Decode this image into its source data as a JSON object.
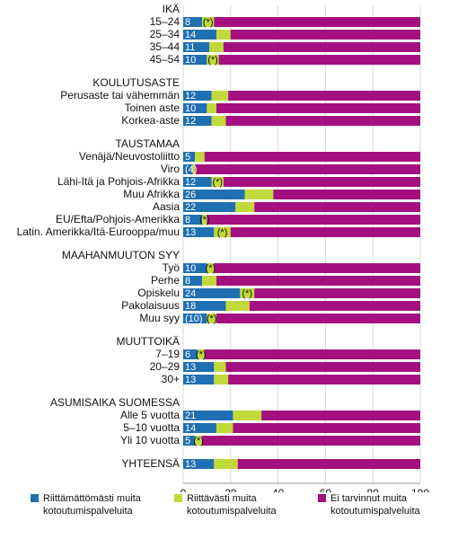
{
  "chart_data": {
    "type": "bar",
    "orientation": "horizontal",
    "stacked": true,
    "xlim": [
      0,
      100
    ],
    "xticks": [
      0,
      20,
      40,
      60,
      80,
      100
    ],
    "xlabel": "%",
    "series": [
      {
        "name": "Riittämättömästi muita kotoutumispalveluita",
        "color": "#1f6fb2"
      },
      {
        "name": "Riittävästi muita kotoutumispalveluita",
        "color": "#c2d93a"
      },
      {
        "name": "Ei tarvinnut muita kotoutumispalveluita",
        "color": "#a4107f"
      }
    ],
    "groups": [
      {
        "title": "IKÄ",
        "rows": [
          {
            "label": "15–24",
            "values": [
              8,
              5,
              87
            ],
            "value_label": "8",
            "flag": "(*)"
          },
          {
            "label": "25–34",
            "values": [
              14,
              6,
              80
            ],
            "value_label": "14",
            "flag": ""
          },
          {
            "label": "35–44",
            "values": [
              11,
              6,
              83
            ],
            "value_label": "11",
            "flag": ""
          },
          {
            "label": "45–54",
            "values": [
              10,
              5,
              85
            ],
            "value_label": "10",
            "flag": "(*)"
          }
        ]
      },
      {
        "title": "KOULUTUSASTE",
        "rows": [
          {
            "label": "Perusaste tai vähemmän",
            "values": [
              12,
              7,
              81
            ],
            "value_label": "12",
            "flag": ""
          },
          {
            "label": "Toinen aste",
            "values": [
              10,
              4,
              86
            ],
            "value_label": "10",
            "flag": ""
          },
          {
            "label": "Korkea-aste",
            "values": [
              12,
              6,
              82
            ],
            "value_label": "12",
            "flag": ""
          }
        ]
      },
      {
        "title": "TAUSTAMAA",
        "rows": [
          {
            "label": "Venäjä/Neuvostoliitto",
            "values": [
              5,
              4,
              91
            ],
            "value_label": "5",
            "flag": ""
          },
          {
            "label": "Viro",
            "values": [
              4,
              1,
              95
            ],
            "value_label": "(4)",
            "flag": ""
          },
          {
            "label": "Lähi-Itä ja Pohjois-Afrikka",
            "values": [
              12,
              5,
              83
            ],
            "value_label": "12",
            "flag": "(*)"
          },
          {
            "label": "Muu Afrikka",
            "values": [
              26,
              12,
              62
            ],
            "value_label": "26",
            "flag": ""
          },
          {
            "label": "Aasia",
            "values": [
              22,
              8,
              70
            ],
            "value_label": "22",
            "flag": ""
          },
          {
            "label": "EU/Efta/Pohjois-Amerikka",
            "values": [
              8,
              2,
              90
            ],
            "value_label": "8",
            "flag": "(*)"
          },
          {
            "label": "Latin. Amerikka/Itä-Eurooppa/muu",
            "values": [
              13,
              7,
              80
            ],
            "value_label": "13",
            "flag": "(*)"
          }
        ]
      },
      {
        "title": "MAAHANMUUTON SYY",
        "rows": [
          {
            "label": "Työ",
            "values": [
              10,
              3,
              87
            ],
            "value_label": "10",
            "flag": "(*)"
          },
          {
            "label": "Perhe",
            "values": [
              8,
              6,
              86
            ],
            "value_label": "8",
            "flag": ""
          },
          {
            "label": "Opiskelu",
            "values": [
              24,
              6,
              70
            ],
            "value_label": "24",
            "flag": "(*)"
          },
          {
            "label": "Pakolaisuus",
            "values": [
              18,
              10,
              72
            ],
            "value_label": "18",
            "flag": ""
          },
          {
            "label": "Muu syy",
            "values": [
              10,
              4,
              86
            ],
            "value_label": "(10)",
            "flag": "(*)"
          }
        ]
      },
      {
        "title": "MUUTTOIKÄ",
        "rows": [
          {
            "label": "7–19",
            "values": [
              6,
              3,
              91
            ],
            "value_label": "6",
            "flag": "(*)"
          },
          {
            "label": "20–29",
            "values": [
              13,
              5,
              82
            ],
            "value_label": "13",
            "flag": ""
          },
          {
            "label": "30+",
            "values": [
              13,
              6,
              81
            ],
            "value_label": "13",
            "flag": ""
          }
        ]
      },
      {
        "title": "ASUMISAIKA SUOMESSA",
        "rows": [
          {
            "label": "Alle 5 vuotta",
            "values": [
              21,
              12,
              67
            ],
            "value_label": "21",
            "flag": ""
          },
          {
            "label": "5–10 vuotta",
            "values": [
              14,
              7,
              79
            ],
            "value_label": "14",
            "flag": ""
          },
          {
            "label": "Yli 10 vuotta",
            "values": [
              5,
              3,
              92
            ],
            "value_label": "5",
            "flag": "(*)"
          }
        ]
      },
      {
        "title": "",
        "rows": [
          {
            "label": "YHTEENSÄ",
            "values": [
              13,
              10,
              77
            ],
            "value_label": "13",
            "flag": ""
          }
        ]
      }
    ]
  }
}
